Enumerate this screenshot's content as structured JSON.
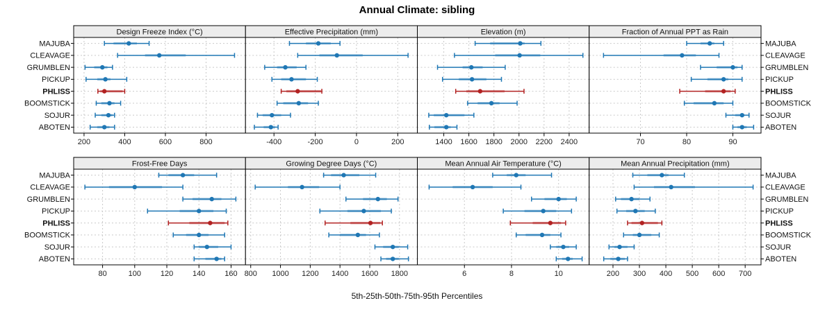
{
  "title": "Annual Climate: sibling",
  "xlabel": "5th-25th-50th-75th-95th Percentiles",
  "highlight_site": "PHLISS",
  "colors": {
    "series_blue": "#1f77b4",
    "highlight_red": "#b22222",
    "band_opacity": 0.42,
    "strip_bg": "#ececec",
    "strip_border": "#000000",
    "panel_border": "#000000",
    "grid": "#c9c9c9",
    "tick_text": "#222222"
  },
  "chart_data": {
    "type": "dotplot-percentiles-trellis",
    "percentile_labels": [
      "5th",
      "25th",
      "50th",
      "75th",
      "95th"
    ],
    "legend_note": "thin line with caps = 5th-95th, thick band = 25th-75th, dot = 50th percentile",
    "sites": [
      "MAJUBA",
      "CLEAVAGE",
      "GRUMBLEN",
      "PICKUP",
      "PHLISS",
      "BOOMSTICK",
      "SOJUR",
      "ABOTEN"
    ],
    "grid_rows": 2,
    "grid_cols": 4,
    "panels": [
      {
        "id": "design-freeze-index",
        "title": "Design Freeze Index (°C)",
        "domain": [
          149,
          994
        ],
        "ticks": [
          200,
          400,
          600,
          800
        ],
        "values": {
          "MAJUBA": [
            300,
            345,
            420,
            460,
            520
          ],
          "CLEAVAGE": [
            365,
            500,
            570,
            700,
            940
          ],
          "GRUMBLEN": [
            205,
            250,
            290,
            315,
            340
          ],
          "PICKUP": [
            210,
            265,
            305,
            330,
            410
          ],
          "PHLISS": [
            268,
            280,
            300,
            390,
            400
          ],
          "BOOMSTICK": [
            260,
            285,
            325,
            350,
            380
          ],
          "SOJUR": [
            255,
            285,
            320,
            340,
            350
          ],
          "ABOTEN": [
            230,
            265,
            300,
            325,
            350
          ]
        }
      },
      {
        "id": "effective-precipitation",
        "title": "Effective Precipitation (mm)",
        "domain": [
          -538,
          295
        ],
        "ticks": [
          -400,
          -200,
          0,
          200
        ],
        "values": {
          "MAJUBA": [
            -325,
            -245,
            -185,
            -125,
            -80
          ],
          "CLEAVAGE": [
            -285,
            -180,
            -95,
            30,
            250
          ],
          "GRUMBLEN": [
            -445,
            -385,
            -345,
            -290,
            -245
          ],
          "PICKUP": [
            -410,
            -365,
            -315,
            -245,
            -190
          ],
          "PHLISS": [
            -365,
            -340,
            -285,
            -172,
            -168
          ],
          "BOOMSTICK": [
            -385,
            -355,
            -280,
            -235,
            -185
          ],
          "SOJUR": [
            -480,
            -455,
            -410,
            -365,
            -320
          ],
          "ABOTEN": [
            -495,
            -450,
            -415,
            -395,
            -380
          ]
        }
      },
      {
        "id": "elevation",
        "title": "Elevation (m)",
        "domain": [
          1189,
          2560
        ],
        "ticks": [
          1400,
          1600,
          1800,
          2000,
          2200,
          2400
        ],
        "values": {
          "MAJUBA": [
            1650,
            1770,
            2010,
            2045,
            2175
          ],
          "CLEAVAGE": [
            1485,
            1810,
            2005,
            2170,
            2510
          ],
          "GRUMBLEN": [
            1350,
            1550,
            1620,
            1710,
            1890
          ],
          "PICKUP": [
            1390,
            1520,
            1625,
            1740,
            1860
          ],
          "PHLISS": [
            1495,
            1580,
            1690,
            1885,
            2040
          ],
          "BOOMSTICK": [
            1590,
            1670,
            1780,
            1845,
            1985
          ],
          "SOJUR": [
            1280,
            1320,
            1420,
            1565,
            1640
          ],
          "ABOTEN": [
            1285,
            1325,
            1420,
            1455,
            1505
          ]
        }
      },
      {
        "id": "fraction-ppt-as-rain",
        "title": "Fraction of Annual PPT as Rain",
        "domain": [
          58.9,
          96.1
        ],
        "ticks": [
          70,
          80,
          90
        ],
        "values": {
          "MAJUBA": [
            80,
            83,
            85,
            86,
            88
          ],
          "CLEAVAGE": [
            62,
            75,
            79,
            82,
            87
          ],
          "GRUMBLEN": [
            83,
            86.5,
            90,
            91,
            92
          ],
          "PICKUP": [
            81,
            84.5,
            88,
            89,
            92
          ],
          "PHLISS": [
            78.5,
            84,
            88,
            89.5,
            90.5
          ],
          "BOOMSTICK": [
            79.5,
            81.5,
            86,
            88,
            90
          ],
          "SOJUR": [
            88.5,
            90.5,
            92,
            92.5,
            93.5
          ],
          "ABOTEN": [
            90,
            91,
            92,
            93,
            94.5
          ]
        }
      },
      {
        "id": "frost-free-days",
        "title": "Frost-Free Days",
        "domain": [
          62,
          169
        ],
        "ticks": [
          80,
          100,
          120,
          140,
          160
        ],
        "values": {
          "MAJUBA": [
            115,
            121,
            130,
            137,
            151
          ],
          "CLEAVAGE": [
            69,
            84,
            100,
            117,
            130
          ],
          "GRUMBLEN": [
            130,
            136,
            148,
            154,
            163
          ],
          "PICKUP": [
            108,
            128,
            140,
            149,
            157
          ],
          "PHLISS": [
            121,
            134,
            147,
            156,
            158
          ],
          "BOOMSTICK": [
            124,
            132,
            140,
            146,
            156
          ],
          "SOJUR": [
            137,
            140,
            145,
            152,
            160
          ],
          "ABOTEN": [
            137,
            144,
            151,
            154,
            156
          ]
        }
      },
      {
        "id": "growing-degree-days",
        "title": "Growing Degree Days (°C)",
        "domain": [
          765,
          1920
        ],
        "ticks": [
          800,
          1000,
          1200,
          1400,
          1600,
          1800
        ],
        "values": {
          "MAJUBA": [
            1290,
            1340,
            1425,
            1530,
            1640
          ],
          "CLEAVAGE": [
            830,
            1050,
            1145,
            1260,
            1400
          ],
          "GRUMBLEN": [
            1440,
            1555,
            1655,
            1715,
            1790
          ],
          "PICKUP": [
            1265,
            1450,
            1560,
            1675,
            1745
          ],
          "PHLISS": [
            1300,
            1470,
            1605,
            1670,
            1685
          ],
          "BOOMSTICK": [
            1325,
            1400,
            1520,
            1575,
            1665
          ],
          "SOJUR": [
            1635,
            1690,
            1755,
            1795,
            1855
          ],
          "ABOTEN": [
            1675,
            1710,
            1755,
            1795,
            1860
          ]
        }
      },
      {
        "id": "mean-annual-air-temperature",
        "title": "Mean Annual Air Temperature (°C)",
        "domain": [
          4.0,
          11.3
        ],
        "ticks": [
          6,
          8,
          10
        ],
        "values": {
          "MAJUBA": [
            7.2,
            7.8,
            8.2,
            8.6,
            9.7
          ],
          "CLEAVAGE": [
            4.5,
            5.5,
            6.35,
            7.2,
            8.4
          ],
          "GRUMBLEN": [
            8.85,
            9.4,
            10.0,
            10.35,
            10.75
          ],
          "PICKUP": [
            7.65,
            8.55,
            9.35,
            9.9,
            10.55
          ],
          "PHLISS": [
            7.95,
            8.9,
            9.65,
            10.1,
            10.3
          ],
          "BOOMSTICK": [
            8.2,
            8.6,
            9.3,
            9.65,
            10.1
          ],
          "SOJUR": [
            9.65,
            9.9,
            10.2,
            10.45,
            10.75
          ],
          "ABOTEN": [
            9.9,
            10.15,
            10.4,
            10.6,
            11.0
          ]
        }
      },
      {
        "id": "mean-annual-precipitation",
        "title": "Mean Annual Precipitation (mm)",
        "domain": [
          110,
          760
        ],
        "ticks": [
          200,
          300,
          400,
          500,
          600,
          700
        ],
        "values": {
          "MAJUBA": [
            275,
            330,
            385,
            410,
            470
          ],
          "CLEAVAGE": [
            280,
            355,
            420,
            510,
            730
          ],
          "GRUMBLEN": [
            210,
            230,
            270,
            300,
            340
          ],
          "PICKUP": [
            215,
            250,
            285,
            320,
            360
          ],
          "PHLISS": [
            255,
            270,
            310,
            370,
            385
          ],
          "BOOMSTICK": [
            240,
            275,
            300,
            345,
            375
          ],
          "SOJUR": [
            185,
            205,
            225,
            255,
            280
          ],
          "ABOTEN": [
            165,
            190,
            220,
            245,
            255
          ]
        }
      }
    ]
  }
}
